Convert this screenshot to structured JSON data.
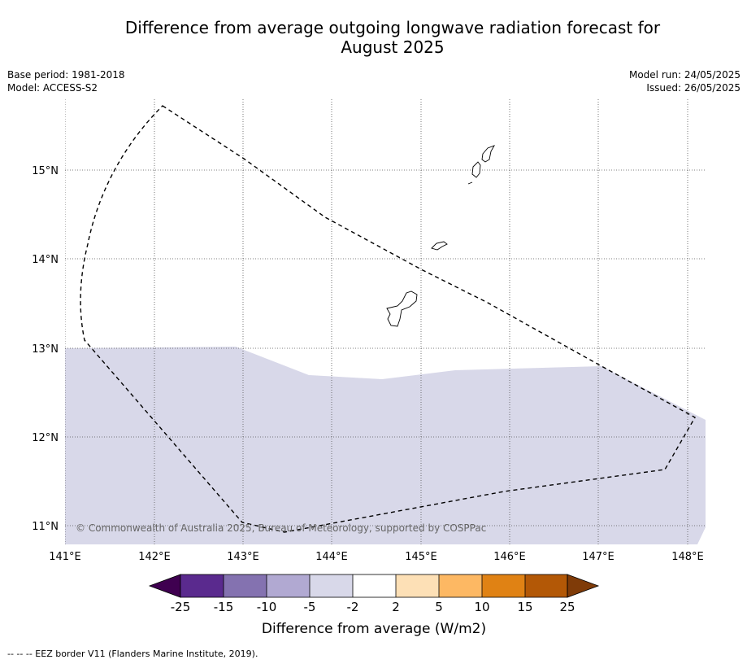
{
  "title_line1": "Difference from average outgoing longwave radiation forecast for",
  "title_line2": "August 2025",
  "base_period": "Base period: 1981-2018",
  "model": "Model: ACCESS-S2",
  "model_run": "Model run: 24/05/2025",
  "issued": "Issued: 26/05/2025",
  "copyright": "© Commonwealth of Australia 2025, Bureau of Meteorology, supported by COSPPac",
  "footnote": "--  --  -- EEZ border V11 (Flanders Marine Institute, 2019).",
  "map": {
    "lon_ticks": [
      "141°E",
      "142°E",
      "143°E",
      "144°E",
      "145°E",
      "146°E",
      "147°E",
      "148°E"
    ],
    "lat_ticks": [
      "15°N",
      "14°N",
      "13°N",
      "12°N",
      "11°N"
    ],
    "lon_range": [
      141,
      148.2
    ],
    "lat_range": [
      10.8,
      15.8
    ],
    "grid": true,
    "shaded_category": "-5 to -2",
    "shaded_color": "#d8d8e9"
  },
  "colorbar": {
    "title": "Difference from average (W/m2)",
    "tick_labels": [
      "-25",
      "-15",
      "-10",
      "-5",
      "-2",
      "2",
      "5",
      "10",
      "15",
      "25"
    ],
    "colors": [
      "#5a2a8e",
      "#8472b0",
      "#b1a9d2",
      "#d8d8e9",
      "#ffffff",
      "#fde0b6",
      "#fdb863",
      "#e08214",
      "#b35806"
    ],
    "extend_low_color": "#3f0050",
    "extend_high_color": "#7f3b08"
  }
}
